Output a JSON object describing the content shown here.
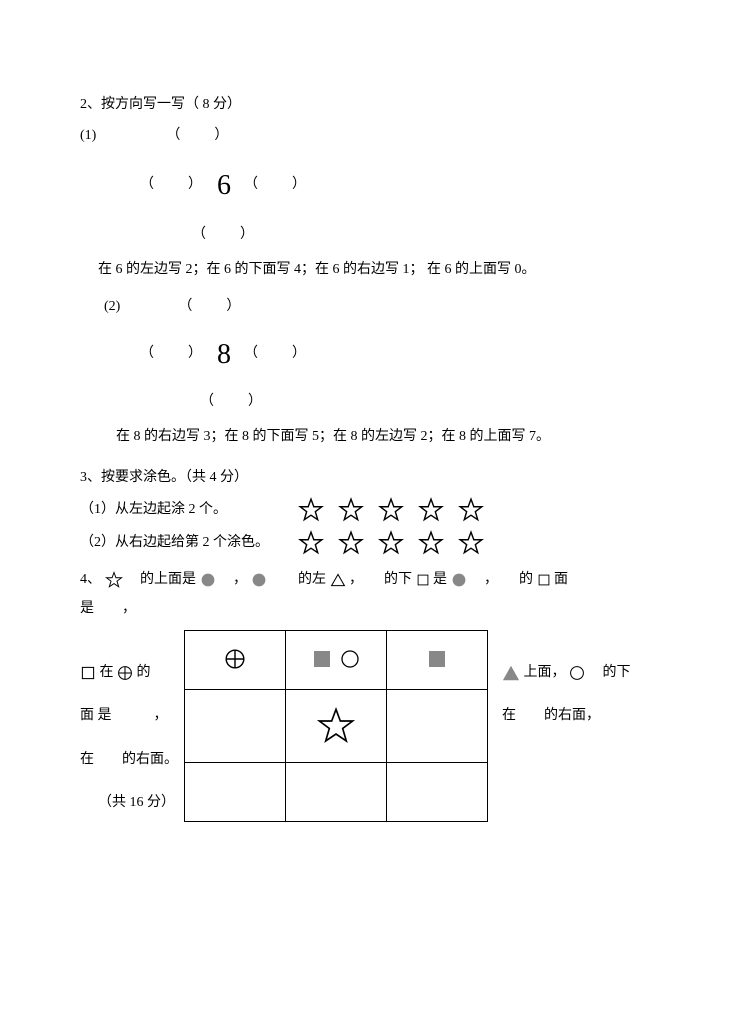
{
  "q2": {
    "title": "2、按方向写一写（ 8 分）",
    "sub1": "(1)",
    "center1": "6",
    "instr1": "在 6 的左边写 2；在 6 的下面写 4；在 6 的右边写 1； 在 6 的上面写 0。",
    "sub2": "(2)",
    "center2": "8",
    "instr2": "在 8 的右边写 3；在 8 的下面写 5；在 8 的左边写 2；在 8 的上面写 7。",
    "paren": "（　　）"
  },
  "q3": {
    "title": "3、按要求涂色。（共 4 分）",
    "item1": "（1）从左边起涂 2 个。",
    "item2": "（2）从右边起给第 2 个涂色。",
    "star_count": 5,
    "star_size": 26,
    "star_stroke": "#000",
    "star_fill": "none"
  },
  "q4": {
    "parts": {
      "p0": "4、",
      "p1": "　的上面是",
      "p2": "　，",
      "p3": "　　的左",
      "p4": "，　　的下",
      "p5": "是",
      "p6": "　，　　的",
      "p7": "面",
      "p8": "是　　，",
      "p9": "在",
      "p10": "的",
      "p11": "上面，",
      "p12": "　的下",
      "p13": "面 是　　　，",
      "p14": "在　　的右面，",
      "p15": "在　　的右面。",
      "points": "（共 16 分）"
    },
    "shape_fill_gray": "#8a8a8a",
    "shape_size": 16,
    "star_outline_size": 18,
    "grid": {
      "rows": 3,
      "cols": 3,
      "star_size": 40
    }
  }
}
